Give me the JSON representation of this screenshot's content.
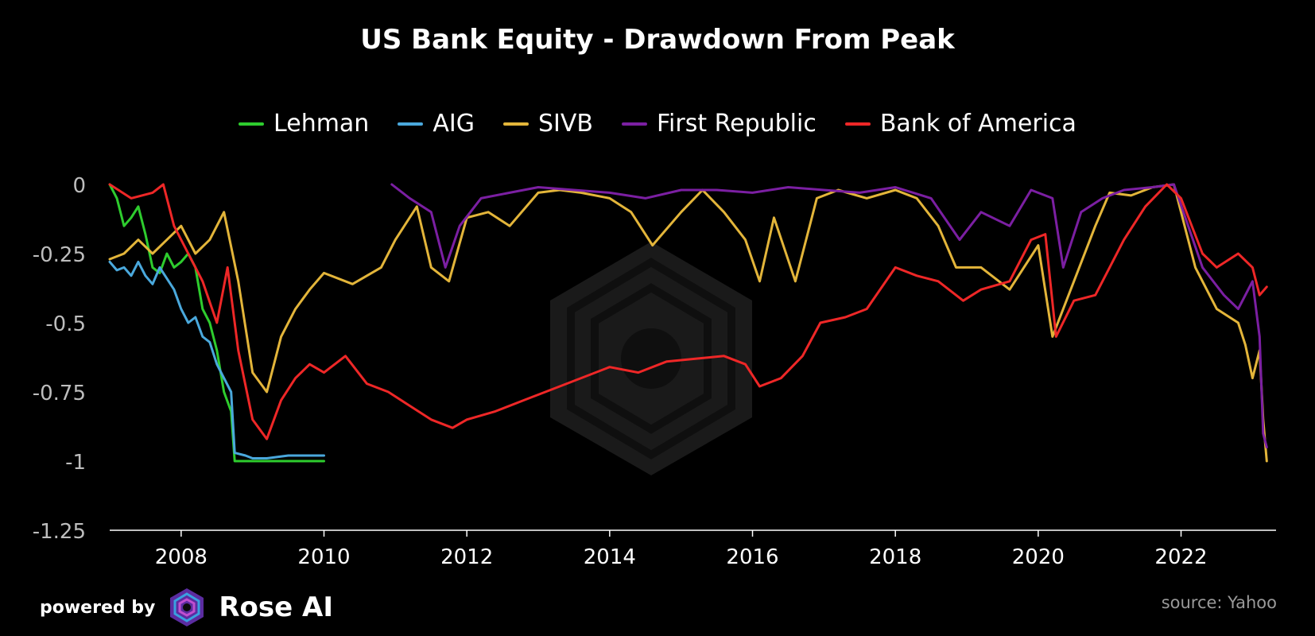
{
  "chart_data": {
    "type": "line",
    "title": "US Bank Equity - Drawdown From Peak",
    "xlabel": "",
    "ylabel": "",
    "xlim": [
      2007.0,
      2023.33
    ],
    "ylim": [
      -1.25,
      0
    ],
    "y_ticks": [
      0,
      -0.25,
      -0.5,
      -0.75,
      -1,
      -1.25
    ],
    "y_tick_labels": [
      "0",
      "-0.25",
      "-0.5",
      "-0.75",
      "-1",
      "-1.25"
    ],
    "x_ticks": [
      2008,
      2010,
      2012,
      2014,
      2016,
      2018,
      2020,
      2022
    ],
    "x_tick_labels": [
      "2008",
      "2010",
      "2012",
      "2014",
      "2016",
      "2018",
      "2020",
      "2022"
    ],
    "legend_position": "top-center",
    "grid": false,
    "series": [
      {
        "name": "Lehman",
        "color": "#2ecc2e",
        "x": [
          2007.0,
          2007.1,
          2007.2,
          2007.3,
          2007.4,
          2007.5,
          2007.6,
          2007.7,
          2007.8,
          2007.9,
          2008.0,
          2008.1,
          2008.2,
          2008.3,
          2008.4,
          2008.5,
          2008.6,
          2008.7,
          2008.75,
          2008.9,
          2009.0,
          2009.5,
          2010.0
        ],
        "y": [
          0.0,
          -0.05,
          -0.15,
          -0.12,
          -0.08,
          -0.18,
          -0.3,
          -0.32,
          -0.25,
          -0.3,
          -0.28,
          -0.25,
          -0.3,
          -0.45,
          -0.5,
          -0.6,
          -0.75,
          -0.82,
          -1.0,
          -1.0,
          -1.0,
          -1.0,
          -1.0
        ]
      },
      {
        "name": "AIG",
        "color": "#4aa8dc",
        "x": [
          2007.0,
          2007.1,
          2007.2,
          2007.3,
          2007.4,
          2007.5,
          2007.6,
          2007.7,
          2007.8,
          2007.9,
          2008.0,
          2008.1,
          2008.2,
          2008.3,
          2008.4,
          2008.5,
          2008.6,
          2008.7,
          2008.75,
          2008.9,
          2009.0,
          2009.2,
          2009.5,
          2009.8,
          2010.0
        ],
        "y": [
          -0.28,
          -0.31,
          -0.3,
          -0.33,
          -0.28,
          -0.33,
          -0.36,
          -0.3,
          -0.34,
          -0.38,
          -0.45,
          -0.5,
          -0.48,
          -0.55,
          -0.57,
          -0.65,
          -0.7,
          -0.75,
          -0.97,
          -0.98,
          -0.99,
          -0.99,
          -0.98,
          -0.98,
          -0.98
        ]
      },
      {
        "name": "SIVB",
        "color": "#e3b53a",
        "x": [
          2007.0,
          2007.2,
          2007.4,
          2007.6,
          2007.8,
          2008.0,
          2008.2,
          2008.4,
          2008.6,
          2008.8,
          2009.0,
          2009.2,
          2009.4,
          2009.6,
          2009.8,
          2010.0,
          2010.4,
          2010.8,
          2011.0,
          2011.3,
          2011.5,
          2011.75,
          2012.0,
          2012.3,
          2012.6,
          2013.0,
          2013.3,
          2013.6,
          2014.0,
          2014.3,
          2014.6,
          2015.0,
          2015.3,
          2015.6,
          2015.9,
          2016.1,
          2016.3,
          2016.6,
          2016.9,
          2017.2,
          2017.6,
          2018.0,
          2018.3,
          2018.6,
          2018.85,
          2019.2,
          2019.6,
          2020.0,
          2020.2,
          2020.5,
          2020.8,
          2021.0,
          2021.3,
          2021.6,
          2021.9,
          2022.2,
          2022.5,
          2022.8,
          2022.9,
          2023.0,
          2023.1,
          2023.15,
          2023.2
        ],
        "y": [
          -0.27,
          -0.25,
          -0.2,
          -0.25,
          -0.2,
          -0.15,
          -0.25,
          -0.2,
          -0.1,
          -0.35,
          -0.68,
          -0.75,
          -0.55,
          -0.45,
          -0.38,
          -0.32,
          -0.36,
          -0.3,
          -0.2,
          -0.08,
          -0.3,
          -0.35,
          -0.12,
          -0.1,
          -0.15,
          -0.03,
          -0.02,
          -0.03,
          -0.05,
          -0.1,
          -0.22,
          -0.1,
          -0.02,
          -0.1,
          -0.2,
          -0.35,
          -0.12,
          -0.35,
          -0.05,
          -0.02,
          -0.05,
          -0.02,
          -0.05,
          -0.15,
          -0.3,
          -0.3,
          -0.38,
          -0.22,
          -0.55,
          -0.35,
          -0.15,
          -0.03,
          -0.04,
          -0.01,
          -0.0,
          -0.3,
          -0.45,
          -0.5,
          -0.58,
          -0.7,
          -0.6,
          -0.85,
          -1.0
        ]
      },
      {
        "name": "First Republic",
        "color": "#7b1fa2",
        "x": [
          2010.95,
          2011.2,
          2011.5,
          2011.7,
          2011.9,
          2012.2,
          2012.6,
          2013.0,
          2013.5,
          2014.0,
          2014.5,
          2015.0,
          2015.5,
          2016.0,
          2016.5,
          2017.0,
          2017.5,
          2018.0,
          2018.5,
          2018.9,
          2019.2,
          2019.6,
          2019.9,
          2020.2,
          2020.35,
          2020.6,
          2020.9,
          2021.2,
          2021.6,
          2021.9,
          2022.1,
          2022.3,
          2022.6,
          2022.8,
          2023.0,
          2023.1,
          2023.15,
          2023.2
        ],
        "y": [
          0.0,
          -0.05,
          -0.1,
          -0.3,
          -0.15,
          -0.05,
          -0.03,
          -0.01,
          -0.02,
          -0.03,
          -0.05,
          -0.02,
          -0.02,
          -0.03,
          -0.01,
          -0.02,
          -0.03,
          -0.01,
          -0.05,
          -0.2,
          -0.1,
          -0.15,
          -0.02,
          -0.05,
          -0.3,
          -0.1,
          -0.05,
          -0.02,
          -0.01,
          -0.0,
          -0.15,
          -0.3,
          -0.4,
          -0.45,
          -0.35,
          -0.55,
          -0.9,
          -0.95
        ]
      },
      {
        "name": "Bank of America",
        "color": "#ee2727",
        "x": [
          2007.0,
          2007.3,
          2007.6,
          2007.75,
          2007.9,
          2008.1,
          2008.3,
          2008.5,
          2008.65,
          2008.8,
          2009.0,
          2009.2,
          2009.4,
          2009.6,
          2009.8,
          2010.0,
          2010.3,
          2010.6,
          2010.9,
          2011.2,
          2011.5,
          2011.8,
          2012.0,
          2012.4,
          2012.8,
          2013.2,
          2013.6,
          2014.0,
          2014.4,
          2014.8,
          2015.2,
          2015.6,
          2015.9,
          2016.1,
          2016.4,
          2016.7,
          2016.95,
          2017.3,
          2017.6,
          2018.0,
          2018.3,
          2018.6,
          2018.95,
          2019.2,
          2019.6,
          2019.9,
          2020.1,
          2020.25,
          2020.5,
          2020.8,
          2021.2,
          2021.5,
          2021.8,
          2022.0,
          2022.3,
          2022.5,
          2022.8,
          2023.0,
          2023.1,
          2023.2
        ],
        "y": [
          0.0,
          -0.05,
          -0.03,
          0.0,
          -0.15,
          -0.25,
          -0.35,
          -0.5,
          -0.3,
          -0.6,
          -0.85,
          -0.92,
          -0.78,
          -0.7,
          -0.65,
          -0.68,
          -0.62,
          -0.72,
          -0.75,
          -0.8,
          -0.85,
          -0.88,
          -0.85,
          -0.82,
          -0.78,
          -0.74,
          -0.7,
          -0.66,
          -0.68,
          -0.64,
          -0.63,
          -0.62,
          -0.65,
          -0.73,
          -0.7,
          -0.62,
          -0.5,
          -0.48,
          -0.45,
          -0.3,
          -0.33,
          -0.35,
          -0.42,
          -0.38,
          -0.35,
          -0.2,
          -0.18,
          -0.55,
          -0.42,
          -0.4,
          -0.2,
          -0.08,
          -0.0,
          -0.05,
          -0.25,
          -0.3,
          -0.25,
          -0.3,
          -0.4,
          -0.37
        ]
      }
    ]
  },
  "footer": {
    "powered_by": "powered by",
    "brand": "Rose AI",
    "source": "source: Yahoo"
  }
}
